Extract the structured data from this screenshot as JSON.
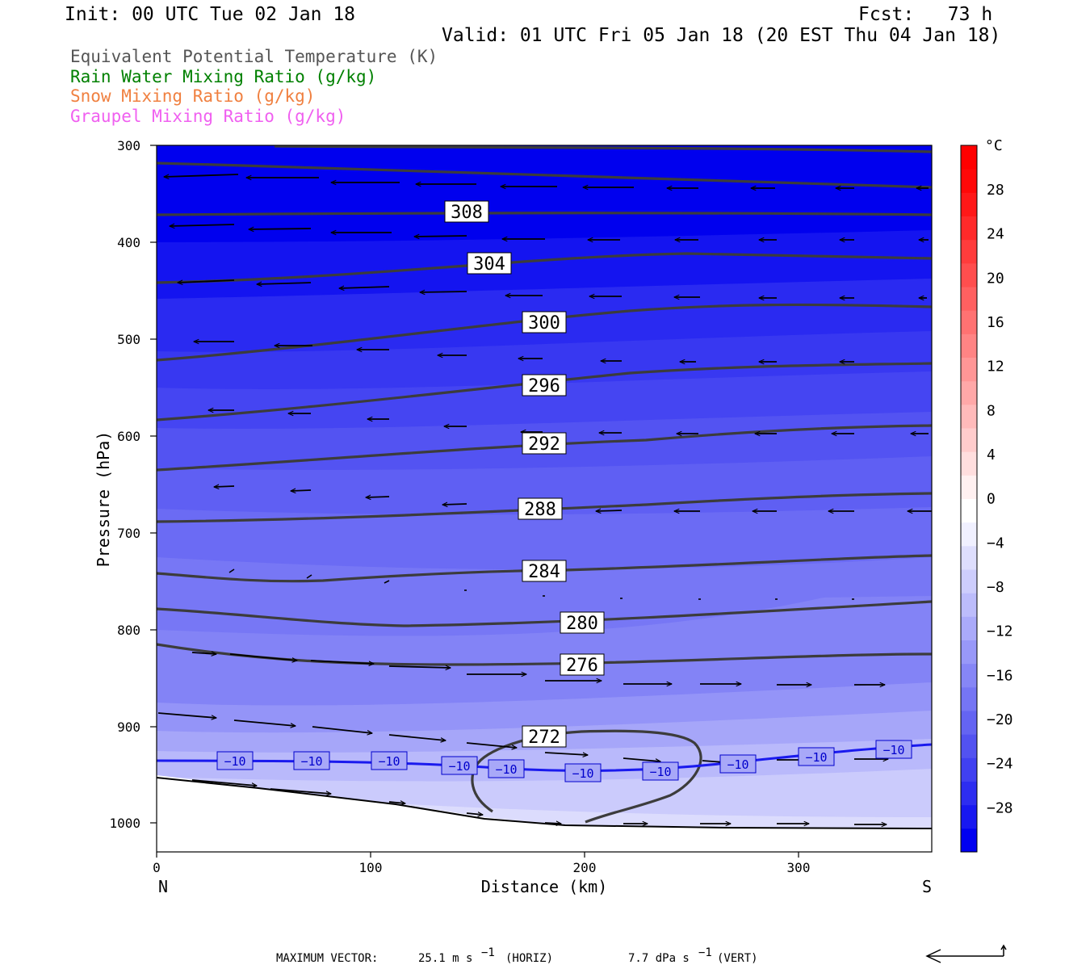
{
  "header": {
    "init": "Init: 00 UTC Tue 02 Jan 18",
    "fcst": "Fcst:   73 h",
    "valid": "Valid: 01 UTC Fri 05 Jan 18 (20 EST Thu 04 Jan 18)"
  },
  "legend": [
    {
      "text": "Equivalent Potential Temperature (K)",
      "color": "#555555"
    },
    {
      "text": "Rain Water Mixing Ratio (g/kg)",
      "color": "#008000"
    },
    {
      "text": "Snow Mixing Ratio (g/kg)",
      "color": "#f08040"
    },
    {
      "text": "Graupel Mixing Ratio (g/kg)",
      "color": "#f060f0"
    }
  ],
  "chart_data": {
    "type": "heatmap",
    "xlabel": "Distance (km)",
    "ylabel": "Pressure (hPa)",
    "xlim": [
      0,
      362
    ],
    "ylim": [
      1030,
      300
    ],
    "x_ticks": [
      "0",
      "100",
      "200",
      "300"
    ],
    "y_ticks": [
      "300",
      "400",
      "500",
      "600",
      "700",
      "800",
      "900",
      "1000"
    ],
    "x_end_labels": {
      "left": "N",
      "right": "S"
    },
    "colorbar": {
      "unit": "°C",
      "labels": [
        "28",
        "24",
        "20",
        "16",
        "12",
        "8",
        "4",
        "0",
        "−4",
        "−8",
        "−12",
        "−16",
        "−20",
        "−24",
        "−28"
      ],
      "colors": [
        "#0000f0",
        "#1818f0",
        "#2d2df0",
        "#4040f0",
        "#5252f0",
        "#6464f2",
        "#7575f4",
        "#8686f6",
        "#9898f8",
        "#aaaafa",
        "#bcbcfb",
        "#cdcdfc",
        "#dedefd",
        "#f0f0ff",
        "#ffffff",
        "#fff0f0",
        "#ffdede",
        "#ffcccc",
        "#ffbaba",
        "#ffa8a8",
        "#ff9696",
        "#ff8484",
        "#ff7272",
        "#ff6060",
        "#ff4e4e",
        "#ff3c3c",
        "#ff2a2a",
        "#ff1818",
        "#ff0808",
        "#ff0000"
      ]
    },
    "theta_e_contour_levels": [
      "308",
      "304",
      "300",
      "296",
      "292",
      "288",
      "284",
      "280",
      "276",
      "272"
    ],
    "temperature_contour_label": "−10",
    "footer": {
      "label": "MAXIMUM VECTOR:",
      "horiz": "25.1 m s",
      "horiz_unit": "(HORIZ)",
      "vert": "7.7 dPa s",
      "vert_unit": "(VERT)",
      "exponent": "−1"
    }
  }
}
